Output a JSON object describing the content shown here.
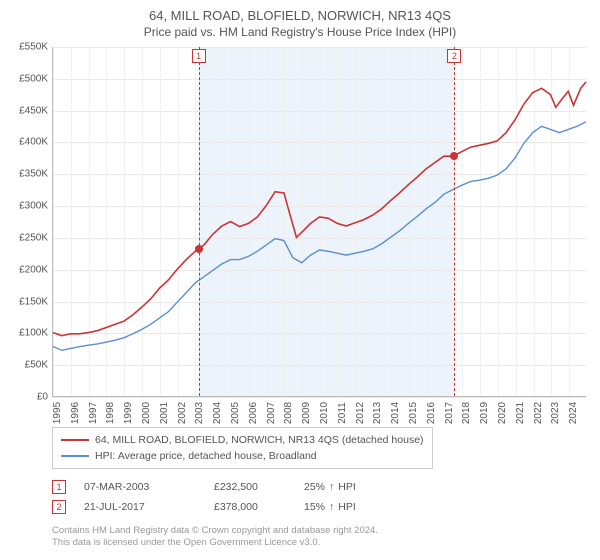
{
  "title": "64, MILL ROAD, BLOFIELD, NORWICH, NR13 4QS",
  "subtitle": "Price paid vs. HM Land Registry's House Price Index (HPI)",
  "chart": {
    "type": "line",
    "ymin": 0,
    "ymax": 550,
    "yticks": [
      0,
      50,
      100,
      150,
      200,
      250,
      300,
      350,
      400,
      450,
      500,
      550
    ],
    "ytick_labels": [
      "£0",
      "£50K",
      "£100K",
      "£150K",
      "£200K",
      "£250K",
      "£300K",
      "£350K",
      "£400K",
      "£450K",
      "£500K",
      "£550K"
    ],
    "xmin": 1995,
    "xmax": 2025,
    "xticks": [
      1995,
      1996,
      1997,
      1998,
      1999,
      2000,
      2001,
      2002,
      2003,
      2004,
      2005,
      2006,
      2007,
      2008,
      2009,
      2010,
      2011,
      2012,
      2013,
      2014,
      2015,
      2016,
      2017,
      2018,
      2019,
      2020,
      2021,
      2022,
      2023,
      2024
    ],
    "band": {
      "from": 2003.18,
      "to": 2017.55,
      "color": "#edf3fa"
    },
    "grid_color": "#e8e8e8",
    "series": [
      {
        "name": "property",
        "label": "64, MILL ROAD, BLOFIELD, NORWICH, NR13 4QS (detached house)",
        "color": "#cc3333",
        "width": 1.6,
        "data": [
          [
            1995,
            100
          ],
          [
            1995.5,
            95
          ],
          [
            1996,
            98
          ],
          [
            1996.5,
            98
          ],
          [
            1997,
            100
          ],
          [
            1997.5,
            103
          ],
          [
            1998,
            108
          ],
          [
            1998.5,
            113
          ],
          [
            1999,
            118
          ],
          [
            1999.5,
            128
          ],
          [
            2000,
            140
          ],
          [
            2000.5,
            153
          ],
          [
            2001,
            170
          ],
          [
            2001.5,
            183
          ],
          [
            2002,
            200
          ],
          [
            2002.5,
            215
          ],
          [
            2003,
            228
          ],
          [
            2003.5,
            238
          ],
          [
            2004,
            255
          ],
          [
            2004.5,
            268
          ],
          [
            2005,
            275
          ],
          [
            2005.5,
            267
          ],
          [
            2006,
            272
          ],
          [
            2006.5,
            282
          ],
          [
            2007,
            300
          ],
          [
            2007.5,
            322
          ],
          [
            2008,
            320
          ],
          [
            2008.3,
            290
          ],
          [
            2008.7,
            250
          ],
          [
            2009,
            258
          ],
          [
            2009.5,
            272
          ],
          [
            2010,
            282
          ],
          [
            2010.5,
            280
          ],
          [
            2011,
            272
          ],
          [
            2011.5,
            268
          ],
          [
            2012,
            273
          ],
          [
            2012.5,
            278
          ],
          [
            2013,
            285
          ],
          [
            2013.5,
            295
          ],
          [
            2014,
            308
          ],
          [
            2014.5,
            320
          ],
          [
            2015,
            333
          ],
          [
            2015.5,
            345
          ],
          [
            2016,
            358
          ],
          [
            2016.5,
            368
          ],
          [
            2017,
            378
          ],
          [
            2017.5,
            378
          ],
          [
            2018,
            385
          ],
          [
            2018.5,
            392
          ],
          [
            2019,
            395
          ],
          [
            2019.5,
            398
          ],
          [
            2020,
            402
          ],
          [
            2020.5,
            415
          ],
          [
            2021,
            435
          ],
          [
            2021.5,
            460
          ],
          [
            2022,
            478
          ],
          [
            2022.5,
            485
          ],
          [
            2023,
            475
          ],
          [
            2023.3,
            455
          ],
          [
            2023.7,
            470
          ],
          [
            2024,
            480
          ],
          [
            2024.3,
            458
          ],
          [
            2024.7,
            485
          ],
          [
            2025,
            495
          ]
        ]
      },
      {
        "name": "hpi",
        "label": "HPI: Average price, detached house, Broadland",
        "color": "#5b8fcf",
        "width": 1.4,
        "data": [
          [
            1995,
            78
          ],
          [
            1995.5,
            72
          ],
          [
            1996,
            75
          ],
          [
            1996.5,
            78
          ],
          [
            1997,
            80
          ],
          [
            1997.5,
            82
          ],
          [
            1998,
            85
          ],
          [
            1998.5,
            88
          ],
          [
            1999,
            92
          ],
          [
            1999.5,
            98
          ],
          [
            2000,
            105
          ],
          [
            2000.5,
            113
          ],
          [
            2001,
            123
          ],
          [
            2001.5,
            133
          ],
          [
            2002,
            148
          ],
          [
            2002.5,
            163
          ],
          [
            2003,
            178
          ],
          [
            2003.5,
            188
          ],
          [
            2004,
            198
          ],
          [
            2004.5,
            208
          ],
          [
            2005,
            215
          ],
          [
            2005.5,
            215
          ],
          [
            2006,
            220
          ],
          [
            2006.5,
            228
          ],
          [
            2007,
            238
          ],
          [
            2007.5,
            248
          ],
          [
            2008,
            245
          ],
          [
            2008.5,
            218
          ],
          [
            2009,
            210
          ],
          [
            2009.5,
            222
          ],
          [
            2010,
            230
          ],
          [
            2010.5,
            228
          ],
          [
            2011,
            225
          ],
          [
            2011.5,
            222
          ],
          [
            2012,
            225
          ],
          [
            2012.5,
            228
          ],
          [
            2013,
            232
          ],
          [
            2013.5,
            240
          ],
          [
            2014,
            250
          ],
          [
            2014.5,
            260
          ],
          [
            2015,
            272
          ],
          [
            2015.5,
            283
          ],
          [
            2016,
            295
          ],
          [
            2016.5,
            305
          ],
          [
            2017,
            318
          ],
          [
            2017.5,
            325
          ],
          [
            2018,
            332
          ],
          [
            2018.5,
            338
          ],
          [
            2019,
            340
          ],
          [
            2019.5,
            343
          ],
          [
            2020,
            348
          ],
          [
            2020.5,
            358
          ],
          [
            2021,
            375
          ],
          [
            2021.5,
            398
          ],
          [
            2022,
            415
          ],
          [
            2022.5,
            425
          ],
          [
            2023,
            420
          ],
          [
            2023.5,
            415
          ],
          [
            2024,
            420
          ],
          [
            2024.5,
            425
          ],
          [
            2025,
            432
          ]
        ]
      }
    ],
    "markers": [
      {
        "x": 2003.18,
        "y": 232.5,
        "color": "#cc3333"
      },
      {
        "x": 2017.55,
        "y": 378,
        "color": "#cc3333"
      }
    ],
    "flags": [
      {
        "n": "1",
        "x": 2003.18,
        "color": "#cc3333"
      },
      {
        "n": "2",
        "x": 2017.55,
        "color": "#cc3333"
      }
    ]
  },
  "legend": [
    {
      "color": "#cc3333",
      "text_key": "chart.series.0.label"
    },
    {
      "color": "#5b8fcf",
      "text_key": "chart.series.1.label"
    }
  ],
  "sales": [
    {
      "n": "1",
      "color": "#cc3333",
      "date": "07-MAR-2003",
      "price": "£232,500",
      "hpi_pct": "25%",
      "hpi_dir": "↑",
      "hpi_label": "HPI"
    },
    {
      "n": "2",
      "color": "#cc3333",
      "date": "21-JUL-2017",
      "price": "£378,000",
      "hpi_pct": "15%",
      "hpi_dir": "↑",
      "hpi_label": "HPI"
    }
  ],
  "footer": {
    "line1": "Contains HM Land Registry data © Crown copyright and database right 2024.",
    "line2": "This data is licensed under the Open Government Licence v3.0."
  }
}
